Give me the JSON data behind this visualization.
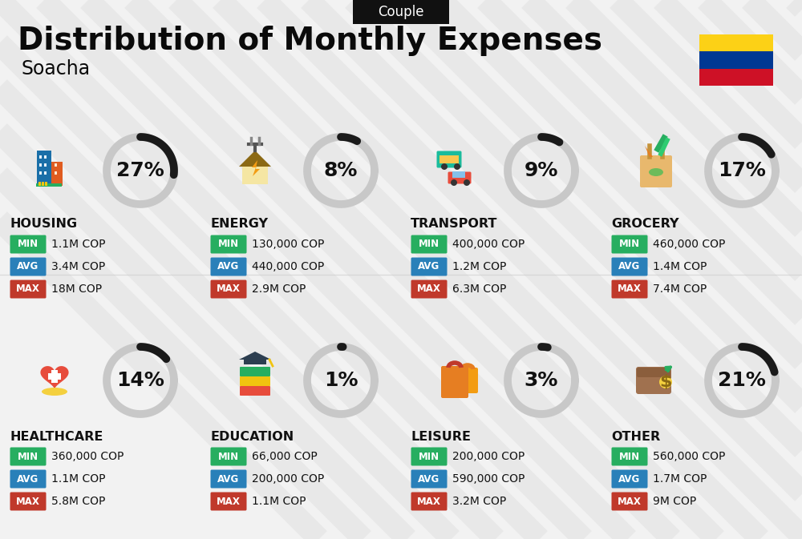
{
  "title": "Distribution of Monthly Expenses",
  "subtitle": "Soacha",
  "badge": "Couple",
  "bg_color": "#f2f2f2",
  "categories": [
    {
      "name": "HOUSING",
      "pct": 27,
      "min": "1.1M COP",
      "avg": "3.4M COP",
      "max": "18M COP",
      "row": 0,
      "col": 0
    },
    {
      "name": "ENERGY",
      "pct": 8,
      "min": "130,000 COP",
      "avg": "440,000 COP",
      "max": "2.9M COP",
      "row": 0,
      "col": 1
    },
    {
      "name": "TRANSPORT",
      "pct": 9,
      "min": "400,000 COP",
      "avg": "1.2M COP",
      "max": "6.3M COP",
      "row": 0,
      "col": 2
    },
    {
      "name": "GROCERY",
      "pct": 17,
      "min": "460,000 COP",
      "avg": "1.4M COP",
      "max": "7.4M COP",
      "row": 0,
      "col": 3
    },
    {
      "name": "HEALTHCARE",
      "pct": 14,
      "min": "360,000 COP",
      "avg": "1.1M COP",
      "max": "5.8M COP",
      "row": 1,
      "col": 0
    },
    {
      "name": "EDUCATION",
      "pct": 1,
      "min": "66,000 COP",
      "avg": "200,000 COP",
      "max": "1.1M COP",
      "row": 1,
      "col": 1
    },
    {
      "name": "LEISURE",
      "pct": 3,
      "min": "200,000 COP",
      "avg": "590,000 COP",
      "max": "3.2M COP",
      "row": 1,
      "col": 2
    },
    {
      "name": "OTHER",
      "pct": 21,
      "min": "560,000 COP",
      "avg": "1.7M COP",
      "max": "9M COP",
      "row": 1,
      "col": 3
    }
  ],
  "min_color": "#27ae60",
  "avg_color": "#2980b9",
  "max_color": "#c0392b",
  "arc_dark": "#1a1a1a",
  "arc_light": "#c8c8c8",
  "colombia_colors": [
    "#FCD116",
    "#003893",
    "#CE1126"
  ],
  "title_fontsize": 28,
  "subtitle_fontsize": 17,
  "badge_fontsize": 12,
  "cat_fontsize": 11.5,
  "val_fontsize": 10,
  "pct_fontsize": 18,
  "stripe_color": "#e0e0e0",
  "stripe_alpha": 0.55
}
